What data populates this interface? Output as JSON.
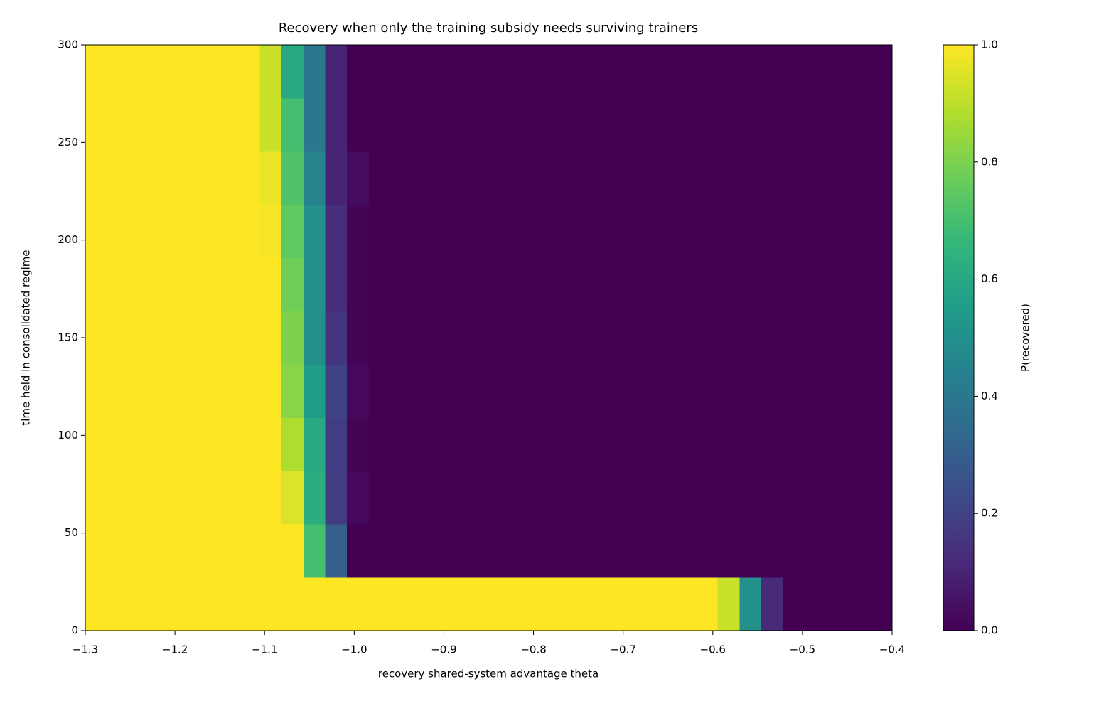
{
  "chart_data": {
    "type": "heatmap",
    "title": "Recovery when only the training subsidy needs surviving trainers",
    "x_label": "recovery shared-system advantage theta",
    "y_label": "time held in consolidated regime",
    "colorbar_label": "P(recovered)",
    "colormap": "viridis",
    "xlim": [
      -1.3,
      -0.4
    ],
    "xticks": [
      {
        "value": -1.3,
        "label": "−1.3"
      },
      {
        "value": -1.2,
        "label": "−1.2"
      },
      {
        "value": -1.1,
        "label": "−1.1"
      },
      {
        "value": -1.0,
        "label": "−1.0"
      },
      {
        "value": -0.9,
        "label": "−0.9"
      },
      {
        "value": -0.8,
        "label": "−0.8"
      },
      {
        "value": -0.7,
        "label": "−0.7"
      },
      {
        "value": -0.6,
        "label": "−0.6"
      },
      {
        "value": -0.5,
        "label": "−0.5"
      },
      {
        "value": -0.4,
        "label": "−0.4"
      }
    ],
    "ylim": [
      0,
      300
    ],
    "yticks": [
      0,
      50,
      100,
      150,
      200,
      250,
      300
    ],
    "clim": [
      0,
      1
    ],
    "cticks": [
      {
        "value": 0,
        "label": "0.0"
      },
      0.2,
      0.4,
      0.6,
      0.8,
      {
        "value": 1,
        "label": "1.0"
      }
    ],
    "values": [
      [
        1,
        1,
        1,
        1,
        1,
        1,
        1,
        1,
        1,
        1,
        1,
        1,
        1,
        1,
        1,
        1,
        1,
        1,
        1,
        1,
        1,
        1,
        1,
        1,
        1,
        1,
        1,
        1,
        1,
        0.92,
        0.5,
        0.12,
        0,
        0,
        0,
        0,
        0
      ],
      [
        1,
        1,
        1,
        1,
        1,
        1,
        1,
        1,
        1,
        1,
        0.7,
        0.3,
        0,
        0,
        0,
        0,
        0,
        0,
        0,
        0,
        0,
        0,
        0,
        0,
        0,
        0,
        0,
        0,
        0,
        0,
        0,
        0,
        0,
        0,
        0,
        0,
        0
      ],
      [
        1,
        1,
        1,
        1,
        1,
        1,
        1,
        1,
        1,
        0.95,
        0.62,
        0.18,
        0.02,
        0,
        0,
        0,
        0,
        0,
        0,
        0,
        0,
        0,
        0,
        0,
        0,
        0,
        0,
        0,
        0,
        0,
        0,
        0,
        0,
        0,
        0,
        0,
        0
      ],
      [
        1,
        1,
        1,
        1,
        1,
        1,
        1,
        1,
        1,
        0.88,
        0.6,
        0.18,
        0.01,
        0,
        0,
        0,
        0,
        0,
        0,
        0,
        0,
        0,
        0,
        0,
        0,
        0,
        0,
        0,
        0,
        0,
        0,
        0,
        0,
        0,
        0,
        0,
        0
      ],
      [
        1,
        1,
        1,
        1,
        1,
        1,
        1,
        1,
        1,
        0.82,
        0.55,
        0.2,
        0.02,
        0,
        0,
        0,
        0,
        0,
        0,
        0,
        0,
        0,
        0,
        0,
        0,
        0,
        0,
        0,
        0,
        0,
        0,
        0,
        0,
        0,
        0,
        0,
        0
      ],
      [
        1,
        1,
        1,
        1,
        1,
        1,
        1,
        1,
        1,
        0.8,
        0.5,
        0.15,
        0.01,
        0,
        0,
        0,
        0,
        0,
        0,
        0,
        0,
        0,
        0,
        0,
        0,
        0,
        0,
        0,
        0,
        0,
        0,
        0,
        0,
        0,
        0,
        0,
        0
      ],
      [
        1,
        1,
        1,
        1,
        1,
        1,
        1,
        1,
        1,
        0.78,
        0.5,
        0.13,
        0.01,
        0,
        0,
        0,
        0,
        0,
        0,
        0,
        0,
        0,
        0,
        0,
        0,
        0,
        0,
        0,
        0,
        0,
        0,
        0,
        0,
        0,
        0,
        0,
        0
      ],
      [
        1,
        1,
        1,
        1,
        1,
        1,
        1,
        1,
        0.99,
        0.75,
        0.5,
        0.13,
        0.01,
        0,
        0,
        0,
        0,
        0,
        0,
        0,
        0,
        0,
        0,
        0,
        0,
        0,
        0,
        0,
        0,
        0,
        0,
        0,
        0,
        0,
        0,
        0,
        0
      ],
      [
        1,
        1,
        1,
        1,
        1,
        1,
        1,
        1,
        0.97,
        0.72,
        0.45,
        0.1,
        0.03,
        0,
        0,
        0,
        0,
        0,
        0,
        0,
        0,
        0,
        0,
        0,
        0,
        0,
        0,
        0,
        0,
        0,
        0,
        0,
        0,
        0,
        0,
        0,
        0
      ],
      [
        1,
        1,
        1,
        1,
        1,
        1,
        1,
        1,
        0.92,
        0.7,
        0.4,
        0.1,
        0,
        0,
        0,
        0,
        0,
        0,
        0,
        0,
        0,
        0,
        0,
        0,
        0,
        0,
        0,
        0,
        0,
        0,
        0,
        0,
        0,
        0,
        0,
        0,
        0
      ],
      [
        1,
        1,
        1,
        1,
        1,
        1,
        1,
        1,
        0.92,
        0.6,
        0.4,
        0.1,
        0,
        0,
        0,
        0,
        0,
        0,
        0,
        0,
        0,
        0,
        0,
        0,
        0,
        0,
        0,
        0,
        0,
        0,
        0,
        0,
        0,
        0,
        0,
        0,
        0
      ]
    ]
  }
}
